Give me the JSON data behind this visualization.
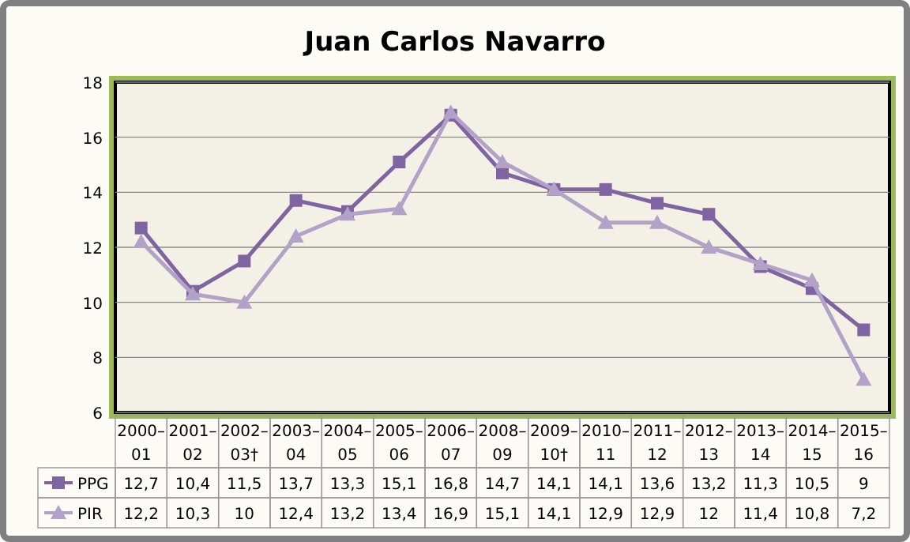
{
  "chart_data": {
    "type": "line",
    "title": "Juan Carlos Navarro",
    "categories": [
      "2000–01",
      "2001–02",
      "2002–03†",
      "2003–04",
      "2004–05",
      "2005–06",
      "2006–07",
      "2008–09",
      "2009–10†",
      "2010–11",
      "2011–12",
      "2012–13",
      "2013–14",
      "2014–15",
      "2015–16"
    ],
    "series": [
      {
        "name": "PPG",
        "color": "#8064a2",
        "marker": "square",
        "values": [
          12.7,
          10.4,
          11.5,
          13.7,
          13.3,
          15.1,
          16.8,
          14.7,
          14.1,
          14.1,
          13.6,
          13.2,
          11.3,
          10.5,
          9
        ],
        "value_labels": [
          "12,7",
          "10,4",
          "11,5",
          "13,7",
          "13,3",
          "15,1",
          "16,8",
          "14,7",
          "14,1",
          "14,1",
          "13,6",
          "13,2",
          "11,3",
          "10,5",
          "9"
        ]
      },
      {
        "name": "PIR",
        "color": "#b3a2c7",
        "marker": "triangle",
        "values": [
          12.2,
          10.3,
          10,
          12.4,
          13.2,
          13.4,
          16.9,
          15.1,
          14.1,
          12.9,
          12.9,
          12,
          11.4,
          10.8,
          7.2
        ],
        "value_labels": [
          "12,2",
          "10,3",
          "10",
          "12,4",
          "13,2",
          "13,4",
          "16,9",
          "15,1",
          "14,1",
          "12,9",
          "12,9",
          "12",
          "11,4",
          "10,8",
          "7,2"
        ]
      }
    ],
    "ylim": [
      6,
      18
    ],
    "yticks": [
      6,
      8,
      10,
      12,
      14,
      16,
      18
    ],
    "grid": "y",
    "legend": "bottom"
  }
}
